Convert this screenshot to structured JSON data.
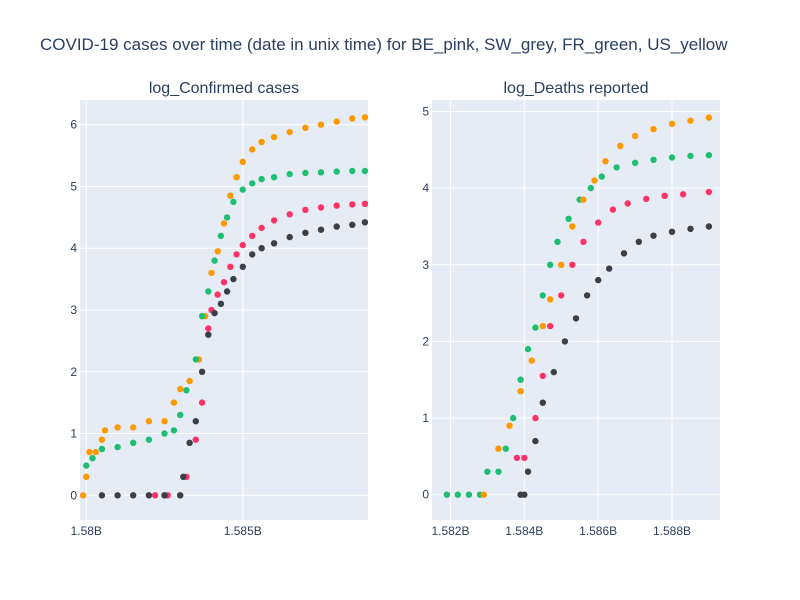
{
  "figure": {
    "title": "COVID-19 cases over time (date in unix time) for BE_pink, SW_grey, FR_green, US_yellow"
  },
  "colors": {
    "plot_bg": "#e5ecf6",
    "grid": "#ffffff",
    "text": "#2a3f5f",
    "BE": "#ff3366",
    "SW": "#3a3f4a",
    "FR": "#1fbf73",
    "US": "#ff9900"
  },
  "chart_data": [
    {
      "type": "scatter",
      "title": "log_Confirmed cases",
      "xlabel": "",
      "ylabel": "",
      "xlim": [
        1579800000,
        1589000000
      ],
      "ylim": [
        -0.4,
        6.4
      ],
      "grid": true,
      "legend": "none",
      "x_ticks": [
        {
          "value": 1580000000,
          "label": "1.58B"
        },
        {
          "value": 1585000000,
          "label": "1.585B"
        }
      ],
      "y_ticks": [
        0,
        1,
        2,
        3,
        4,
        5,
        6
      ],
      "series": [
        {
          "key": "US",
          "points": [
            [
              1579900000,
              0
            ],
            [
              1580000000,
              0.3
            ],
            [
              1580100000,
              0.7
            ],
            [
              1580300000,
              0.7
            ],
            [
              1580500000,
              0.9
            ],
            [
              1580600000,
              1.05
            ],
            [
              1581000000,
              1.1
            ],
            [
              1581500000,
              1.1
            ],
            [
              1582000000,
              1.2
            ],
            [
              1582500000,
              1.2
            ],
            [
              1582800000,
              1.5
            ],
            [
              1583000000,
              1.72
            ],
            [
              1583300000,
              1.85
            ],
            [
              1583600000,
              2.2
            ],
            [
              1583800000,
              2.9
            ],
            [
              1584000000,
              3.6
            ],
            [
              1584200000,
              3.95
            ],
            [
              1584400000,
              4.4
            ],
            [
              1584600000,
              4.85
            ],
            [
              1584800000,
              5.15
            ],
            [
              1585000000,
              5.4
            ],
            [
              1585300000,
              5.6
            ],
            [
              1585600000,
              5.72
            ],
            [
              1586000000,
              5.8
            ],
            [
              1586500000,
              5.88
            ],
            [
              1587000000,
              5.95
            ],
            [
              1587500000,
              6.0
            ],
            [
              1588000000,
              6.05
            ],
            [
              1588500000,
              6.1
            ],
            [
              1588900000,
              6.12
            ]
          ]
        },
        {
          "key": "FR",
          "points": [
            [
              1580000000,
              0.48
            ],
            [
              1580200000,
              0.6
            ],
            [
              1580500000,
              0.75
            ],
            [
              1581000000,
              0.78
            ],
            [
              1581500000,
              0.85
            ],
            [
              1582000000,
              0.9
            ],
            [
              1582500000,
              1.0
            ],
            [
              1582800000,
              1.05
            ],
            [
              1583000000,
              1.3
            ],
            [
              1583200000,
              1.7
            ],
            [
              1583500000,
              2.2
            ],
            [
              1583700000,
              2.9
            ],
            [
              1583900000,
              3.3
            ],
            [
              1584100000,
              3.8
            ],
            [
              1584300000,
              4.2
            ],
            [
              1584500000,
              4.5
            ],
            [
              1584700000,
              4.75
            ],
            [
              1585000000,
              4.95
            ],
            [
              1585300000,
              5.05
            ],
            [
              1585600000,
              5.12
            ],
            [
              1586000000,
              5.15
            ],
            [
              1586500000,
              5.2
            ],
            [
              1587000000,
              5.22
            ],
            [
              1587500000,
              5.23
            ],
            [
              1588000000,
              5.24
            ],
            [
              1588500000,
              5.25
            ],
            [
              1588900000,
              5.25
            ]
          ]
        },
        {
          "key": "BE",
          "points": [
            [
              1582200000,
              0
            ],
            [
              1582600000,
              0
            ],
            [
              1583000000,
              0
            ],
            [
              1583200000,
              0.3
            ],
            [
              1583500000,
              0.9
            ],
            [
              1583700000,
              1.5
            ],
            [
              1583900000,
              2.7
            ],
            [
              1584000000,
              3.0
            ],
            [
              1584200000,
              3.25
            ],
            [
              1584400000,
              3.45
            ],
            [
              1584600000,
              3.7
            ],
            [
              1584800000,
              3.9
            ],
            [
              1585000000,
              4.05
            ],
            [
              1585300000,
              4.2
            ],
            [
              1585600000,
              4.33
            ],
            [
              1586000000,
              4.45
            ],
            [
              1586500000,
              4.55
            ],
            [
              1587000000,
              4.62
            ],
            [
              1587500000,
              4.66
            ],
            [
              1588000000,
              4.69
            ],
            [
              1588500000,
              4.71
            ],
            [
              1588900000,
              4.72
            ]
          ]
        },
        {
          "key": "SW",
          "points": [
            [
              1580500000,
              0
            ],
            [
              1581000000,
              0
            ],
            [
              1581500000,
              0
            ],
            [
              1582000000,
              0
            ],
            [
              1582500000,
              0
            ],
            [
              1583000000,
              0
            ],
            [
              1583100000,
              0.3
            ],
            [
              1583300000,
              0.85
            ],
            [
              1583500000,
              1.2
            ],
            [
              1583700000,
              2.0
            ],
            [
              1583900000,
              2.6
            ],
            [
              1584100000,
              2.95
            ],
            [
              1584300000,
              3.1
            ],
            [
              1584500000,
              3.3
            ],
            [
              1584700000,
              3.5
            ],
            [
              1585000000,
              3.7
            ],
            [
              1585300000,
              3.9
            ],
            [
              1585600000,
              4.0
            ],
            [
              1586000000,
              4.08
            ],
            [
              1586500000,
              4.18
            ],
            [
              1587000000,
              4.25
            ],
            [
              1587500000,
              4.3
            ],
            [
              1588000000,
              4.35
            ],
            [
              1588500000,
              4.38
            ],
            [
              1588900000,
              4.42
            ]
          ]
        }
      ]
    },
    {
      "type": "scatter",
      "title": "log_Deaths reported",
      "xlabel": "",
      "ylabel": "",
      "xlim": [
        1581500000,
        1589300000
      ],
      "ylim": [
        -0.33,
        5.15
      ],
      "grid": true,
      "legend": "none",
      "x_ticks": [
        {
          "value": 1582000000,
          "label": "1.582B"
        },
        {
          "value": 1584000000,
          "label": "1.584B"
        },
        {
          "value": 1586000000,
          "label": "1.586B"
        },
        {
          "value": 1588000000,
          "label": "1.588B"
        }
      ],
      "y_ticks": [
        0,
        1,
        2,
        3,
        4,
        5
      ],
      "series": [
        {
          "key": "FR",
          "points": [
            [
              1581900000,
              0
            ],
            [
              1582200000,
              0
            ],
            [
              1582500000,
              0
            ],
            [
              1582800000,
              0
            ],
            [
              1583000000,
              0.3
            ],
            [
              1583300000,
              0.3
            ],
            [
              1583500000,
              0.6
            ],
            [
              1583700000,
              1.0
            ],
            [
              1583900000,
              1.5
            ],
            [
              1584100000,
              1.9
            ],
            [
              1584300000,
              2.18
            ],
            [
              1584500000,
              2.6
            ],
            [
              1584700000,
              3.0
            ],
            [
              1584900000,
              3.3
            ],
            [
              1585200000,
              3.6
            ],
            [
              1585500000,
              3.85
            ],
            [
              1585800000,
              4.0
            ],
            [
              1586100000,
              4.15
            ],
            [
              1586500000,
              4.27
            ],
            [
              1587000000,
              4.33
            ],
            [
              1587500000,
              4.37
            ],
            [
              1588000000,
              4.4
            ],
            [
              1588500000,
              4.42
            ],
            [
              1589000000,
              4.43
            ]
          ]
        },
        {
          "key": "US",
          "points": [
            [
              1582900000,
              0
            ],
            [
              1583300000,
              0.6
            ],
            [
              1583600000,
              0.9
            ],
            [
              1583900000,
              1.35
            ],
            [
              1584200000,
              1.75
            ],
            [
              1584500000,
              2.2
            ],
            [
              1584700000,
              2.55
            ],
            [
              1585000000,
              3.0
            ],
            [
              1585300000,
              3.5
            ],
            [
              1585600000,
              3.85
            ],
            [
              1585900000,
              4.1
            ],
            [
              1586200000,
              4.35
            ],
            [
              1586600000,
              4.55
            ],
            [
              1587000000,
              4.68
            ],
            [
              1587500000,
              4.77
            ],
            [
              1588000000,
              4.84
            ],
            [
              1588500000,
              4.88
            ],
            [
              1589000000,
              4.92
            ]
          ]
        },
        {
          "key": "BE",
          "points": [
            [
              1583800000,
              0.48
            ],
            [
              1584000000,
              0.48
            ],
            [
              1584300000,
              1.0
            ],
            [
              1584500000,
              1.55
            ],
            [
              1584700000,
              2.2
            ],
            [
              1585000000,
              2.6
            ],
            [
              1585300000,
              3.0
            ],
            [
              1585600000,
              3.3
            ],
            [
              1586000000,
              3.55
            ],
            [
              1586400000,
              3.72
            ],
            [
              1586800000,
              3.8
            ],
            [
              1587300000,
              3.86
            ],
            [
              1587800000,
              3.9
            ],
            [
              1588300000,
              3.92
            ],
            [
              1589000000,
              3.95
            ]
          ]
        },
        {
          "key": "SW",
          "points": [
            [
              1583900000,
              0
            ],
            [
              1584000000,
              0
            ],
            [
              1584100000,
              0.3
            ],
            [
              1584300000,
              0.7
            ],
            [
              1584500000,
              1.2
            ],
            [
              1584800000,
              1.6
            ],
            [
              1585100000,
              2.0
            ],
            [
              1585400000,
              2.3
            ],
            [
              1585700000,
              2.6
            ],
            [
              1586000000,
              2.8
            ],
            [
              1586300000,
              2.95
            ],
            [
              1586700000,
              3.15
            ],
            [
              1587100000,
              3.3
            ],
            [
              1587500000,
              3.38
            ],
            [
              1588000000,
              3.43
            ],
            [
              1588500000,
              3.47
            ],
            [
              1589000000,
              3.5
            ]
          ]
        }
      ]
    }
  ]
}
